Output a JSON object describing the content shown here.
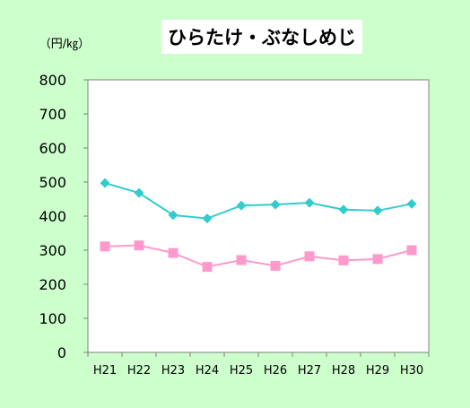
{
  "chart_data": {
    "type": "line",
    "title": "ひらたけ・ぶなしめじ",
    "unit_label": "（円/㎏）",
    "xlabel": "",
    "ylabel": "",
    "categories": [
      "H21",
      "H22",
      "H23",
      "H24",
      "H25",
      "H26",
      "H27",
      "H28",
      "H29",
      "H30"
    ],
    "ylim": [
      0,
      800
    ],
    "yticks": [
      "0",
      "100",
      "200",
      "300",
      "400",
      "500",
      "600",
      "700",
      "800"
    ],
    "grid": false,
    "legend": "none",
    "series": [
      {
        "color": "#33cccc",
        "marker": "diamond",
        "values": [
          497,
          468,
          403,
          393,
          431,
          434,
          439,
          419,
          416,
          436
        ]
      },
      {
        "color": "#ff99cc",
        "marker": "square",
        "values": [
          311,
          314,
          292,
          251,
          271,
          254,
          282,
          270,
          274,
          300
        ]
      }
    ]
  },
  "colors": {
    "background": "#ccffcc",
    "plot_area": "#ffffff",
    "axis": "#808080"
  }
}
